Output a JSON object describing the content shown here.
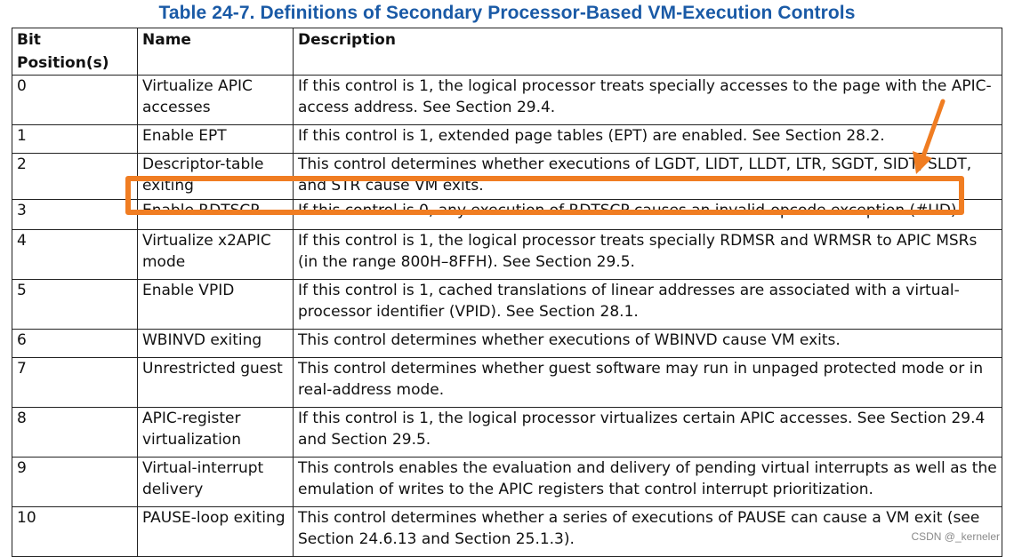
{
  "title": "Table 24-7.  Definitions of Secondary Processor-Based VM-Execution Controls",
  "headers": [
    "Bit Position(s)",
    "Name",
    "Description"
  ],
  "rows": [
    {
      "bit": "0",
      "name": "Virtualize APIC accesses",
      "desc": "If this control is 1, the logical processor treats specially accesses to the page with the APIC-access address. See Section 29.4."
    },
    {
      "bit": "1",
      "name": "Enable EPT",
      "desc": "If this control is 1, extended page tables (EPT) are enabled. See Section 28.2."
    },
    {
      "bit": "2",
      "name": "Descriptor-table exiting",
      "desc": "This control determines whether executions of LGDT, LIDT, LLDT, LTR, SGDT, SIDT, SLDT, and STR cause VM exits."
    },
    {
      "bit": "3",
      "name": "Enable RDTSCP",
      "desc": "If this control is 0, any execution of RDTSCP causes an invalid-opcode exception (#UD)."
    },
    {
      "bit": "4",
      "name": "Virtualize x2APIC mode",
      "desc": "If this control is 1, the logical processor treats specially RDMSR and WRMSR to APIC MSRs (in the range 800H–8FFH). See Section 29.5."
    },
    {
      "bit": "5",
      "name": "Enable VPID",
      "desc": "If this control is 1, cached translations of linear addresses are associated with a virtual-processor identifier (VPID). See Section 28.1."
    },
    {
      "bit": "6",
      "name": "WBINVD exiting",
      "desc": "This control determines whether executions of WBINVD cause VM exits."
    },
    {
      "bit": "7",
      "name": "Unrestricted guest",
      "desc": "This control determines whether guest software may run in unpaged protected mode or in real-address mode."
    },
    {
      "bit": "8",
      "name": "APIC-register virtualization",
      "desc": "If this control is 1, the logical processor virtualizes certain APIC accesses. See Section 29.4 and Section 29.5."
    },
    {
      "bit": "9",
      "name": "Virtual-interrupt delivery",
      "desc": "This controls enables the evaluation and delivery of pending virtual interrupts as well as the emulation of writes to the APIC registers that control interrupt prioritization."
    },
    {
      "bit": "10",
      "name": "PAUSE-loop exiting",
      "desc": "This control determines whether a series of executions of PAUSE can cause a VM exit (see Section 24.6.13 and Section 25.1.3)."
    }
  ],
  "annotation": {
    "highlighted_row": "3",
    "color": "#f07d22"
  },
  "colors": {
    "title": "#1a5aa6",
    "border": "#222222",
    "highlight": "#f07d22"
  },
  "watermark": "CSDN @_kerneler"
}
